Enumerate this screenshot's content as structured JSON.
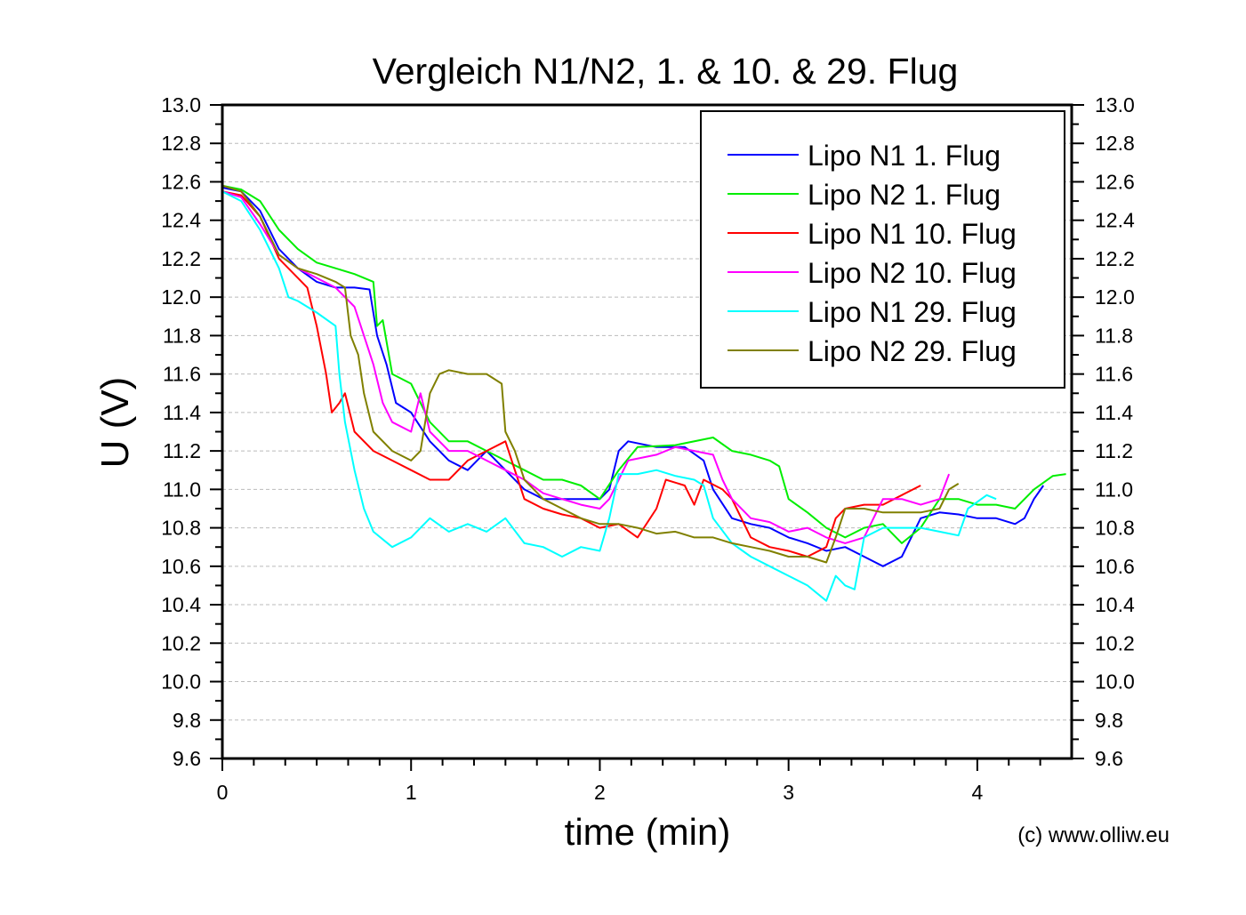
{
  "chart_data": {
    "type": "line",
    "title": "Vergleich N1/N2, 1. & 10. & 29. Flug",
    "xlabel": "time (min)",
    "ylabel": "U (V)",
    "xlim": [
      0,
      4.5
    ],
    "ylim": [
      9.6,
      13.0
    ],
    "xticks": [
      "0",
      "1",
      "2",
      "3",
      "4"
    ],
    "yticks": [
      "9.6",
      "9.8",
      "10.0",
      "10.2",
      "10.4",
      "10.6",
      "10.8",
      "11.0",
      "11.2",
      "11.4",
      "11.6",
      "11.8",
      "12.0",
      "12.2",
      "12.4",
      "12.6",
      "12.8",
      "13.0"
    ],
    "grid": "horizontal dashed",
    "legend_position": "top-right",
    "annotation": "(c) www.olliw.eu",
    "series": [
      {
        "name": "Lipo N1 1. Flug",
        "color": "#0000ff",
        "points": [
          [
            0,
            12.57
          ],
          [
            0.1,
            12.55
          ],
          [
            0.2,
            12.45
          ],
          [
            0.3,
            12.25
          ],
          [
            0.4,
            12.15
          ],
          [
            0.5,
            12.08
          ],
          [
            0.6,
            12.05
          ],
          [
            0.7,
            12.05
          ],
          [
            0.78,
            12.04
          ],
          [
            0.82,
            11.8
          ],
          [
            0.87,
            11.65
          ],
          [
            0.92,
            11.45
          ],
          [
            1.0,
            11.4
          ],
          [
            1.1,
            11.25
          ],
          [
            1.2,
            11.15
          ],
          [
            1.3,
            11.1
          ],
          [
            1.4,
            11.2
          ],
          [
            1.5,
            11.1
          ],
          [
            1.6,
            11.0
          ],
          [
            1.7,
            10.95
          ],
          [
            1.8,
            10.95
          ],
          [
            1.9,
            10.95
          ],
          [
            2.0,
            10.95
          ],
          [
            2.05,
            11.0
          ],
          [
            2.1,
            11.2
          ],
          [
            2.15,
            11.25
          ],
          [
            2.3,
            11.22
          ],
          [
            2.45,
            11.22
          ],
          [
            2.55,
            11.15
          ],
          [
            2.6,
            11.0
          ],
          [
            2.7,
            10.85
          ],
          [
            2.8,
            10.82
          ],
          [
            2.9,
            10.8
          ],
          [
            3.0,
            10.75
          ],
          [
            3.1,
            10.72
          ],
          [
            3.2,
            10.68
          ],
          [
            3.3,
            10.7
          ],
          [
            3.4,
            10.65
          ],
          [
            3.5,
            10.6
          ],
          [
            3.6,
            10.65
          ],
          [
            3.7,
            10.85
          ],
          [
            3.8,
            10.88
          ],
          [
            3.9,
            10.87
          ],
          [
            4.0,
            10.85
          ],
          [
            4.1,
            10.85
          ],
          [
            4.2,
            10.82
          ],
          [
            4.25,
            10.85
          ],
          [
            4.3,
            10.95
          ],
          [
            4.35,
            11.02
          ]
        ]
      },
      {
        "name": "Lipo N2 1. Flug",
        "color": "#00ee00",
        "points": [
          [
            0,
            12.58
          ],
          [
            0.1,
            12.56
          ],
          [
            0.2,
            12.5
          ],
          [
            0.3,
            12.35
          ],
          [
            0.4,
            12.25
          ],
          [
            0.5,
            12.18
          ],
          [
            0.6,
            12.15
          ],
          [
            0.7,
            12.12
          ],
          [
            0.8,
            12.08
          ],
          [
            0.82,
            11.85
          ],
          [
            0.85,
            11.88
          ],
          [
            0.9,
            11.6
          ],
          [
            1.0,
            11.55
          ],
          [
            1.1,
            11.35
          ],
          [
            1.2,
            11.25
          ],
          [
            1.3,
            11.25
          ],
          [
            1.4,
            11.2
          ],
          [
            1.5,
            11.15
          ],
          [
            1.6,
            11.1
          ],
          [
            1.7,
            11.05
          ],
          [
            1.8,
            11.05
          ],
          [
            1.9,
            11.02
          ],
          [
            2.0,
            10.95
          ],
          [
            2.1,
            11.1
          ],
          [
            2.2,
            11.22
          ],
          [
            2.4,
            11.23
          ],
          [
            2.6,
            11.27
          ],
          [
            2.7,
            11.2
          ],
          [
            2.8,
            11.18
          ],
          [
            2.9,
            11.15
          ],
          [
            2.95,
            11.12
          ],
          [
            3.0,
            10.95
          ],
          [
            3.1,
            10.88
          ],
          [
            3.2,
            10.8
          ],
          [
            3.3,
            10.75
          ],
          [
            3.4,
            10.8
          ],
          [
            3.5,
            10.82
          ],
          [
            3.6,
            10.72
          ],
          [
            3.7,
            10.8
          ],
          [
            3.8,
            10.95
          ],
          [
            3.9,
            10.95
          ],
          [
            4.0,
            10.92
          ],
          [
            4.1,
            10.92
          ],
          [
            4.2,
            10.9
          ],
          [
            4.3,
            11.0
          ],
          [
            4.4,
            11.07
          ],
          [
            4.47,
            11.08
          ]
        ]
      },
      {
        "name": "Lipo N1 10. Flug",
        "color": "#ff0000",
        "points": [
          [
            0,
            12.55
          ],
          [
            0.1,
            12.53
          ],
          [
            0.2,
            12.42
          ],
          [
            0.3,
            12.2
          ],
          [
            0.4,
            12.1
          ],
          [
            0.45,
            12.05
          ],
          [
            0.5,
            11.85
          ],
          [
            0.55,
            11.6
          ],
          [
            0.58,
            11.4
          ],
          [
            0.62,
            11.45
          ],
          [
            0.65,
            11.5
          ],
          [
            0.7,
            11.3
          ],
          [
            0.8,
            11.2
          ],
          [
            0.9,
            11.15
          ],
          [
            1.0,
            11.1
          ],
          [
            1.1,
            11.05
          ],
          [
            1.2,
            11.05
          ],
          [
            1.3,
            11.15
          ],
          [
            1.4,
            11.2
          ],
          [
            1.5,
            11.25
          ],
          [
            1.55,
            11.1
          ],
          [
            1.6,
            10.95
          ],
          [
            1.7,
            10.9
          ],
          [
            1.8,
            10.87
          ],
          [
            1.9,
            10.85
          ],
          [
            2.0,
            10.8
          ],
          [
            2.1,
            10.82
          ],
          [
            2.2,
            10.75
          ],
          [
            2.3,
            10.9
          ],
          [
            2.35,
            11.05
          ],
          [
            2.45,
            11.02
          ],
          [
            2.5,
            10.92
          ],
          [
            2.55,
            11.05
          ],
          [
            2.65,
            11.0
          ],
          [
            2.7,
            10.95
          ],
          [
            2.8,
            10.75
          ],
          [
            2.9,
            10.7
          ],
          [
            3.0,
            10.68
          ],
          [
            3.1,
            10.65
          ],
          [
            3.2,
            10.7
          ],
          [
            3.25,
            10.85
          ],
          [
            3.3,
            10.9
          ],
          [
            3.4,
            10.92
          ],
          [
            3.5,
            10.92
          ],
          [
            3.6,
            10.97
          ],
          [
            3.7,
            11.02
          ]
        ]
      },
      {
        "name": "Lipo N2 10. Flug",
        "color": "#ff00ff",
        "points": [
          [
            0,
            12.55
          ],
          [
            0.1,
            12.52
          ],
          [
            0.2,
            12.38
          ],
          [
            0.3,
            12.22
          ],
          [
            0.4,
            12.15
          ],
          [
            0.5,
            12.1
          ],
          [
            0.6,
            12.05
          ],
          [
            0.7,
            11.95
          ],
          [
            0.75,
            11.8
          ],
          [
            0.8,
            11.65
          ],
          [
            0.85,
            11.45
          ],
          [
            0.9,
            11.35
          ],
          [
            1.0,
            11.3
          ],
          [
            1.05,
            11.5
          ],
          [
            1.1,
            11.3
          ],
          [
            1.2,
            11.2
          ],
          [
            1.3,
            11.2
          ],
          [
            1.4,
            11.15
          ],
          [
            1.5,
            11.1
          ],
          [
            1.6,
            11.05
          ],
          [
            1.7,
            10.98
          ],
          [
            1.8,
            10.95
          ],
          [
            1.9,
            10.92
          ],
          [
            2.0,
            10.9
          ],
          [
            2.05,
            10.95
          ],
          [
            2.1,
            11.05
          ],
          [
            2.15,
            11.15
          ],
          [
            2.3,
            11.18
          ],
          [
            2.4,
            11.22
          ],
          [
            2.5,
            11.2
          ],
          [
            2.6,
            11.18
          ],
          [
            2.65,
            11.05
          ],
          [
            2.7,
            10.95
          ],
          [
            2.8,
            10.85
          ],
          [
            2.9,
            10.83
          ],
          [
            3.0,
            10.78
          ],
          [
            3.1,
            10.8
          ],
          [
            3.2,
            10.75
          ],
          [
            3.3,
            10.72
          ],
          [
            3.4,
            10.75
          ],
          [
            3.5,
            10.95
          ],
          [
            3.6,
            10.95
          ],
          [
            3.7,
            10.92
          ],
          [
            3.8,
            10.95
          ],
          [
            3.85,
            11.08
          ]
        ]
      },
      {
        "name": "Lipo N1 29. Flug",
        "color": "#00ffff",
        "points": [
          [
            0,
            12.55
          ],
          [
            0.1,
            12.5
          ],
          [
            0.2,
            12.35
          ],
          [
            0.3,
            12.15
          ],
          [
            0.35,
            12.0
          ],
          [
            0.4,
            11.98
          ],
          [
            0.5,
            11.92
          ],
          [
            0.6,
            11.85
          ],
          [
            0.62,
            11.6
          ],
          [
            0.65,
            11.35
          ],
          [
            0.7,
            11.1
          ],
          [
            0.75,
            10.9
          ],
          [
            0.8,
            10.78
          ],
          [
            0.9,
            10.7
          ],
          [
            1.0,
            10.75
          ],
          [
            1.1,
            10.85
          ],
          [
            1.2,
            10.78
          ],
          [
            1.3,
            10.82
          ],
          [
            1.4,
            10.78
          ],
          [
            1.5,
            10.85
          ],
          [
            1.6,
            10.72
          ],
          [
            1.7,
            10.7
          ],
          [
            1.8,
            10.65
          ],
          [
            1.9,
            10.7
          ],
          [
            2.0,
            10.68
          ],
          [
            2.05,
            10.85
          ],
          [
            2.1,
            11.08
          ],
          [
            2.2,
            11.08
          ],
          [
            2.3,
            11.1
          ],
          [
            2.4,
            11.07
          ],
          [
            2.5,
            11.05
          ],
          [
            2.55,
            11.02
          ],
          [
            2.6,
            10.85
          ],
          [
            2.7,
            10.72
          ],
          [
            2.8,
            10.65
          ],
          [
            2.9,
            10.6
          ],
          [
            3.0,
            10.55
          ],
          [
            3.1,
            10.5
          ],
          [
            3.2,
            10.42
          ],
          [
            3.25,
            10.55
          ],
          [
            3.3,
            10.5
          ],
          [
            3.35,
            10.48
          ],
          [
            3.4,
            10.75
          ],
          [
            3.5,
            10.8
          ],
          [
            3.6,
            10.8
          ],
          [
            3.7,
            10.8
          ],
          [
            3.8,
            10.78
          ],
          [
            3.9,
            10.76
          ],
          [
            3.95,
            10.9
          ],
          [
            4.05,
            10.97
          ],
          [
            4.1,
            10.95
          ]
        ]
      },
      {
        "name": "Lipo N2 29. Flug",
        "color": "#808000",
        "points": [
          [
            0,
            12.58
          ],
          [
            0.1,
            12.55
          ],
          [
            0.2,
            12.42
          ],
          [
            0.3,
            12.22
          ],
          [
            0.4,
            12.15
          ],
          [
            0.5,
            12.12
          ],
          [
            0.6,
            12.08
          ],
          [
            0.65,
            12.05
          ],
          [
            0.68,
            11.8
          ],
          [
            0.72,
            11.7
          ],
          [
            0.75,
            11.5
          ],
          [
            0.8,
            11.3
          ],
          [
            0.9,
            11.2
          ],
          [
            1.0,
            11.15
          ],
          [
            1.05,
            11.2
          ],
          [
            1.1,
            11.5
          ],
          [
            1.15,
            11.6
          ],
          [
            1.2,
            11.62
          ],
          [
            1.3,
            11.6
          ],
          [
            1.4,
            11.6
          ],
          [
            1.48,
            11.55
          ],
          [
            1.5,
            11.3
          ],
          [
            1.55,
            11.2
          ],
          [
            1.6,
            11.05
          ],
          [
            1.7,
            10.95
          ],
          [
            1.8,
            10.9
          ],
          [
            1.9,
            10.85
          ],
          [
            2.0,
            10.82
          ],
          [
            2.1,
            10.82
          ],
          [
            2.2,
            10.8
          ],
          [
            2.3,
            10.77
          ],
          [
            2.4,
            10.78
          ],
          [
            2.5,
            10.75
          ],
          [
            2.6,
            10.75
          ],
          [
            2.7,
            10.72
          ],
          [
            2.8,
            10.7
          ],
          [
            2.9,
            10.68
          ],
          [
            3.0,
            10.65
          ],
          [
            3.1,
            10.65
          ],
          [
            3.2,
            10.62
          ],
          [
            3.25,
            10.75
          ],
          [
            3.3,
            10.9
          ],
          [
            3.4,
            10.9
          ],
          [
            3.5,
            10.88
          ],
          [
            3.6,
            10.88
          ],
          [
            3.7,
            10.88
          ],
          [
            3.8,
            10.9
          ],
          [
            3.85,
            11.0
          ],
          [
            3.9,
            11.03
          ]
        ]
      }
    ]
  }
}
